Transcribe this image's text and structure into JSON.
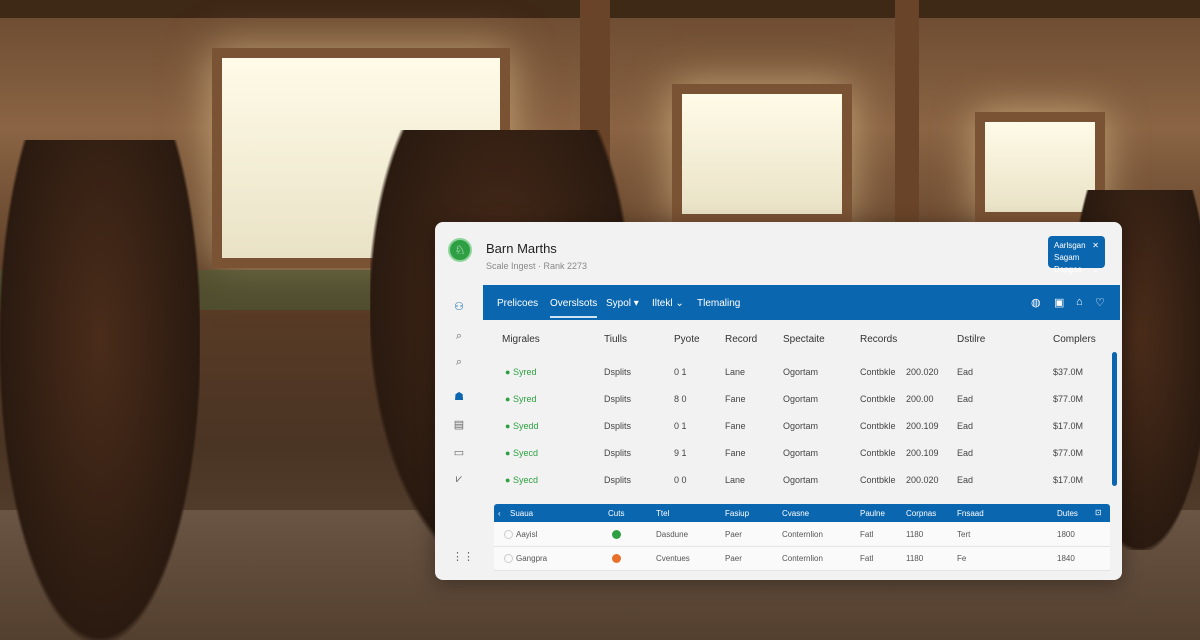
{
  "app": {
    "title": "Barn Marths",
    "subtitle": "Scale Ingest · Rank 2273"
  },
  "account": {
    "line1": "Aarlsgan",
    "line2": "Sagam Dapgas",
    "close_icon": "close-icon",
    "chevron_icon": "chevron-down-icon"
  },
  "sidebar": {
    "icons": [
      "users-icon",
      "search-icon",
      "search-icon",
      "user-icon",
      "document-icon",
      "inbox-icon",
      "chart-icon",
      "grid-icon"
    ]
  },
  "nav": {
    "tabs": [
      {
        "label": "Prelicoes"
      },
      {
        "label": "Overslsots",
        "active": true
      },
      {
        "label": "Sypol ▾"
      },
      {
        "label": "Iltekl ⌄"
      },
      {
        "label": "Tlemaling"
      }
    ],
    "icons": [
      "globe-icon",
      "bookmark-icon",
      "lock-icon",
      "heart-icon"
    ]
  },
  "table": {
    "headers": [
      "Migrales",
      "Tiulls",
      "Pyote",
      "Record",
      "Spectaite",
      "Records",
      "Dstilre",
      "Complers"
    ],
    "rows": [
      [
        "Syred",
        "Dsplits",
        "0 1",
        "Lane",
        "Ogortam",
        "Contbkle",
        "200.020",
        "Ead",
        "$37.0M"
      ],
      [
        "Syred",
        "Dsplits",
        "8 0",
        "Fane",
        "Ogortam",
        "Contbkle",
        "200.00",
        "Ead",
        "$77.0M"
      ],
      [
        "Syedd",
        "Dsplits",
        "0 1",
        "Fane",
        "Ogortam",
        "Contbkle",
        "200.109",
        "Ead",
        "$17.0M"
      ],
      [
        "Syecd",
        "Dsplits",
        "9 1",
        "Fane",
        "Ogortam",
        "Contbkle",
        "200.109",
        "Ead",
        "$77.0M"
      ],
      [
        "Syecd",
        "Dsplits",
        "0 0",
        "Lane",
        "Ogortam",
        "Contbkle",
        "200.020",
        "Ead",
        "$17.0M"
      ]
    ]
  },
  "subtable": {
    "headers": [
      "Suaua",
      "Cuts",
      "Ttel",
      "Fasiup",
      "Cvasne",
      "Paulne",
      "Corpnas",
      "Fnsaad",
      "Dutes"
    ],
    "rows": [
      {
        "name": "Aayisl",
        "status_color": "#2ea043",
        "cells": [
          "Dasdune",
          "Paer",
          "Conternlion",
          "Fatl",
          "1180",
          "Tert",
          "1800"
        ]
      },
      {
        "name": "Gangpra",
        "status_color": "#e8702a",
        "cells": [
          "Cventues",
          "Paer",
          "Conternlion",
          "Fatl",
          "1180",
          "Fe",
          "1840"
        ]
      }
    ]
  },
  "colors": {
    "accent": "#0b66b0",
    "success": "#2ea043",
    "warning": "#e8702a"
  }
}
